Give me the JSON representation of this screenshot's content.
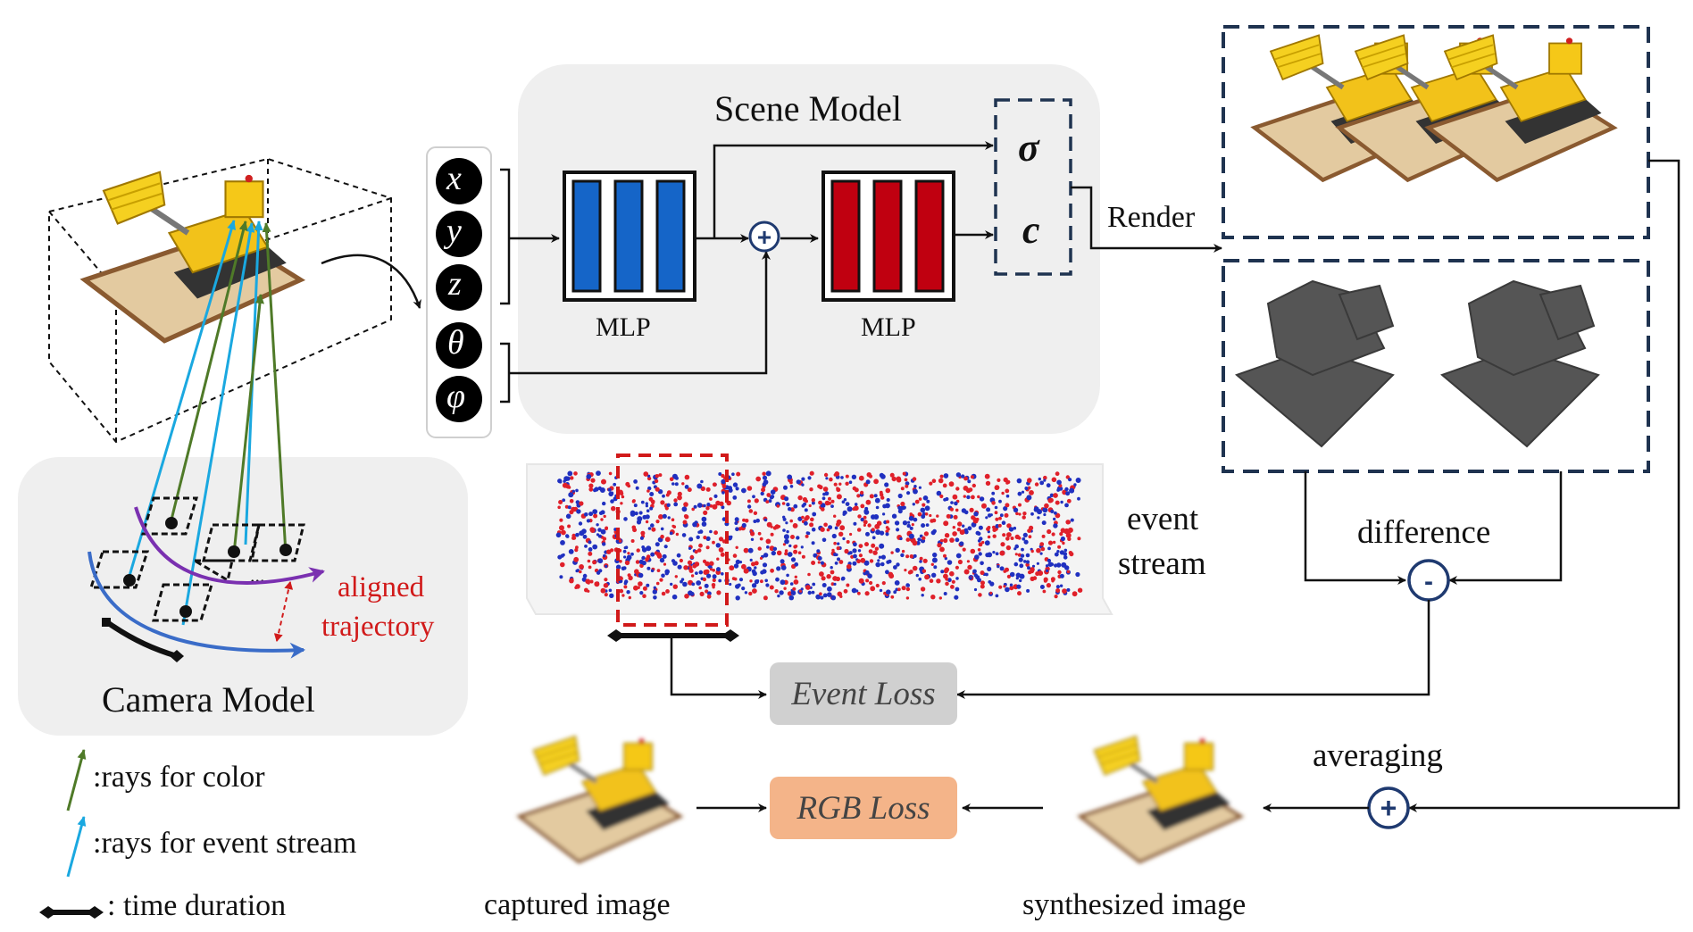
{
  "scene": {
    "title": "Scene Model",
    "mlp1_label": "MLP",
    "mlp2_label": "MLP",
    "inputs": [
      "x",
      "y",
      "z",
      "θ",
      "φ"
    ],
    "outputs": [
      "σ",
      "c"
    ],
    "render_label": "Render"
  },
  "camera": {
    "title": "Camera Model",
    "aligned_label_line1": "aligned",
    "aligned_label_line2": "trajectory",
    "ellipsis": "..."
  },
  "event": {
    "label_line1": "event",
    "label_line2": "stream",
    "loss_label": "Event Loss"
  },
  "rgb": {
    "loss_label": "RGB Loss",
    "captured_label": "captured image",
    "synthesized_label": "synthesized image"
  },
  "ops": {
    "difference_label": "difference",
    "averaging_label": "averaging",
    "plus_symbol": "+",
    "minus_symbol": "-"
  },
  "legend": {
    "color_rays": ":rays for color",
    "event_rays": ":rays for event stream",
    "time_duration": ": time duration"
  },
  "colors": {
    "mlp1": "#1565c8",
    "mlp2": "#c00010",
    "dashed_box": "#1f3350",
    "event_pos": "#e0202a",
    "event_neg": "#2030c0",
    "aligned_red": "#d11a1a",
    "ray_green": "#4f7a28",
    "ray_cyan": "#1aa8e0",
    "traj_purple": "#7a30b0",
    "traj_blue": "#3a6cc8",
    "event_loss_bg": "#d0d0d0",
    "rgb_loss_bg": "#f4b489"
  },
  "icons": {
    "excavator": "excavator-render",
    "depth": "depth-render",
    "camera": "camera-frustum-icon"
  }
}
